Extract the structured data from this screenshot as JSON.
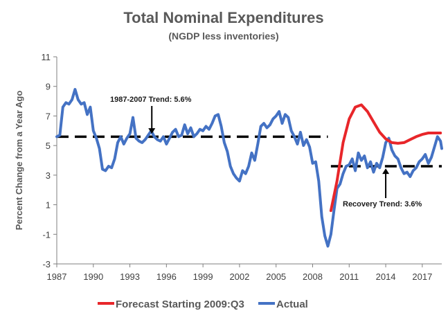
{
  "chart_data": {
    "type": "line",
    "title": "Total Nominal Expenditures",
    "subtitle": "(NGDP less inventories)",
    "xlabel": "",
    "ylabel": "Percent Change from a Year Ago",
    "xlim": [
      1987,
      2018.6
    ],
    "ylim": [
      -3,
      11
    ],
    "x_ticks": [
      "1987",
      "1990",
      "1993",
      "1996",
      "1999",
      "2002",
      "2005",
      "2008",
      "2011",
      "2014",
      "2017"
    ],
    "y_ticks": [
      "-3",
      "-1",
      "1",
      "3",
      "5",
      "7",
      "9",
      "11"
    ],
    "grid": false,
    "legend_position": "bottom",
    "series": [
      {
        "name": "Forecast Starting 2009:Q3",
        "color": "#e8262a",
        "points": [
          [
            2009.5,
            0.6
          ],
          [
            2010.0,
            2.6
          ],
          [
            2010.5,
            5.2
          ],
          [
            2011.0,
            6.8
          ],
          [
            2011.5,
            7.6
          ],
          [
            2012.0,
            7.75
          ],
          [
            2012.5,
            7.3
          ],
          [
            2013.0,
            6.6
          ],
          [
            2013.5,
            5.9
          ],
          [
            2014.0,
            5.45
          ],
          [
            2014.5,
            5.2
          ],
          [
            2015.0,
            5.15
          ],
          [
            2015.5,
            5.2
          ],
          [
            2016.0,
            5.4
          ],
          [
            2016.5,
            5.6
          ],
          [
            2017.0,
            5.75
          ],
          [
            2017.5,
            5.85
          ],
          [
            2018.0,
            5.85
          ],
          [
            2018.5,
            5.85
          ]
        ]
      },
      {
        "name": "Actual",
        "color": "#4472c4",
        "points": [
          [
            1987.0,
            5.6
          ],
          [
            1987.25,
            5.7
          ],
          [
            1987.5,
            7.6
          ],
          [
            1987.75,
            7.9
          ],
          [
            1988.0,
            7.8
          ],
          [
            1988.25,
            8.1
          ],
          [
            1988.5,
            8.8
          ],
          [
            1988.75,
            8.1
          ],
          [
            1989.0,
            7.8
          ],
          [
            1989.25,
            7.9
          ],
          [
            1989.5,
            7.1
          ],
          [
            1989.75,
            7.6
          ],
          [
            1990.0,
            6.0
          ],
          [
            1990.25,
            5.5
          ],
          [
            1990.5,
            4.8
          ],
          [
            1990.75,
            3.4
          ],
          [
            1991.0,
            3.3
          ],
          [
            1991.25,
            3.6
          ],
          [
            1991.5,
            3.5
          ],
          [
            1991.75,
            4.1
          ],
          [
            1992.0,
            5.2
          ],
          [
            1992.25,
            5.6
          ],
          [
            1992.5,
            5.1
          ],
          [
            1992.75,
            5.5
          ],
          [
            1993.0,
            5.8
          ],
          [
            1993.25,
            6.9
          ],
          [
            1993.5,
            5.5
          ],
          [
            1993.75,
            5.3
          ],
          [
            1994.0,
            5.2
          ],
          [
            1994.25,
            5.4
          ],
          [
            1994.5,
            5.7
          ],
          [
            1994.75,
            6.0
          ],
          [
            1995.0,
            5.6
          ],
          [
            1995.25,
            5.4
          ],
          [
            1995.5,
            5.3
          ],
          [
            1995.75,
            5.6
          ],
          [
            1996.0,
            5.1
          ],
          [
            1996.25,
            5.5
          ],
          [
            1996.5,
            5.9
          ],
          [
            1996.75,
            6.1
          ],
          [
            1997.0,
            5.6
          ],
          [
            1997.25,
            5.7
          ],
          [
            1997.5,
            6.4
          ],
          [
            1997.75,
            5.8
          ],
          [
            1998.0,
            6.2
          ],
          [
            1998.25,
            5.6
          ],
          [
            1998.5,
            5.8
          ],
          [
            1998.75,
            6.1
          ],
          [
            1999.0,
            6.0
          ],
          [
            1999.25,
            6.3
          ],
          [
            1999.5,
            6.1
          ],
          [
            1999.75,
            6.5
          ],
          [
            2000.0,
            7.0
          ],
          [
            2000.25,
            7.1
          ],
          [
            2000.5,
            6.3
          ],
          [
            2000.75,
            5.2
          ],
          [
            2001.0,
            4.6
          ],
          [
            2001.25,
            3.6
          ],
          [
            2001.5,
            3.1
          ],
          [
            2001.75,
            2.8
          ],
          [
            2002.0,
            2.6
          ],
          [
            2002.25,
            3.3
          ],
          [
            2002.5,
            3.1
          ],
          [
            2002.75,
            3.6
          ],
          [
            2003.0,
            4.5
          ],
          [
            2003.25,
            4.0
          ],
          [
            2003.5,
            5.1
          ],
          [
            2003.75,
            6.3
          ],
          [
            2004.0,
            6.5
          ],
          [
            2004.25,
            6.2
          ],
          [
            2004.5,
            6.4
          ],
          [
            2004.75,
            6.8
          ],
          [
            2005.0,
            7.0
          ],
          [
            2005.25,
            7.3
          ],
          [
            2005.5,
            6.5
          ],
          [
            2005.75,
            7.1
          ],
          [
            2006.0,
            6.9
          ],
          [
            2006.25,
            6.0
          ],
          [
            2006.5,
            5.6
          ],
          [
            2006.75,
            5.1
          ],
          [
            2007.0,
            5.9
          ],
          [
            2007.25,
            5.0
          ],
          [
            2007.5,
            5.4
          ],
          [
            2007.75,
            4.9
          ],
          [
            2008.0,
            3.8
          ],
          [
            2008.25,
            3.9
          ],
          [
            2008.5,
            2.6
          ],
          [
            2008.75,
            0.2
          ],
          [
            2009.0,
            -1.1
          ],
          [
            2009.25,
            -1.8
          ],
          [
            2009.5,
            -1.0
          ],
          [
            2009.75,
            0.6
          ],
          [
            2010.0,
            2.1
          ],
          [
            2010.25,
            2.4
          ],
          [
            2010.5,
            3.1
          ],
          [
            2010.75,
            3.6
          ],
          [
            2011.0,
            3.7
          ],
          [
            2011.25,
            4.1
          ],
          [
            2011.5,
            3.3
          ],
          [
            2011.75,
            4.5
          ],
          [
            2012.0,
            4.0
          ],
          [
            2012.25,
            4.3
          ],
          [
            2012.5,
            3.5
          ],
          [
            2012.75,
            3.9
          ],
          [
            2013.0,
            3.2
          ],
          [
            2013.25,
            3.8
          ],
          [
            2013.5,
            3.5
          ],
          [
            2013.75,
            4.2
          ],
          [
            2014.0,
            5.2
          ],
          [
            2014.25,
            5.5
          ],
          [
            2014.5,
            4.7
          ],
          [
            2014.75,
            4.3
          ],
          [
            2015.0,
            4.1
          ],
          [
            2015.25,
            3.5
          ],
          [
            2015.5,
            3.1
          ],
          [
            2015.75,
            3.2
          ],
          [
            2016.0,
            2.9
          ],
          [
            2016.25,
            3.3
          ],
          [
            2016.5,
            3.5
          ],
          [
            2016.75,
            3.9
          ],
          [
            2017.0,
            4.1
          ],
          [
            2017.25,
            4.4
          ],
          [
            2017.5,
            3.8
          ],
          [
            2017.75,
            4.2
          ],
          [
            2018.0,
            4.9
          ],
          [
            2018.25,
            5.6
          ],
          [
            2018.5,
            5.3
          ],
          [
            2018.6,
            4.8
          ]
        ]
      }
    ],
    "trend_lines": [
      {
        "label": "1987-2007 Trend: 5.6%",
        "value": 5.6,
        "x_range": [
          1987,
          2009.25
        ]
      },
      {
        "label": "Recovery Trend: 3.6%",
        "value": 3.6,
        "x_range": [
          2009.5,
          2018.6
        ]
      }
    ],
    "annotations": [
      {
        "text": "1987-2007 Trend: 5.6%",
        "arrow_x": 1994.8,
        "arrow_to": 5.75
      },
      {
        "text": "Recovery Trend: 3.6%",
        "arrow_x": 2014.0,
        "arrow_to": 3.5
      }
    ]
  }
}
